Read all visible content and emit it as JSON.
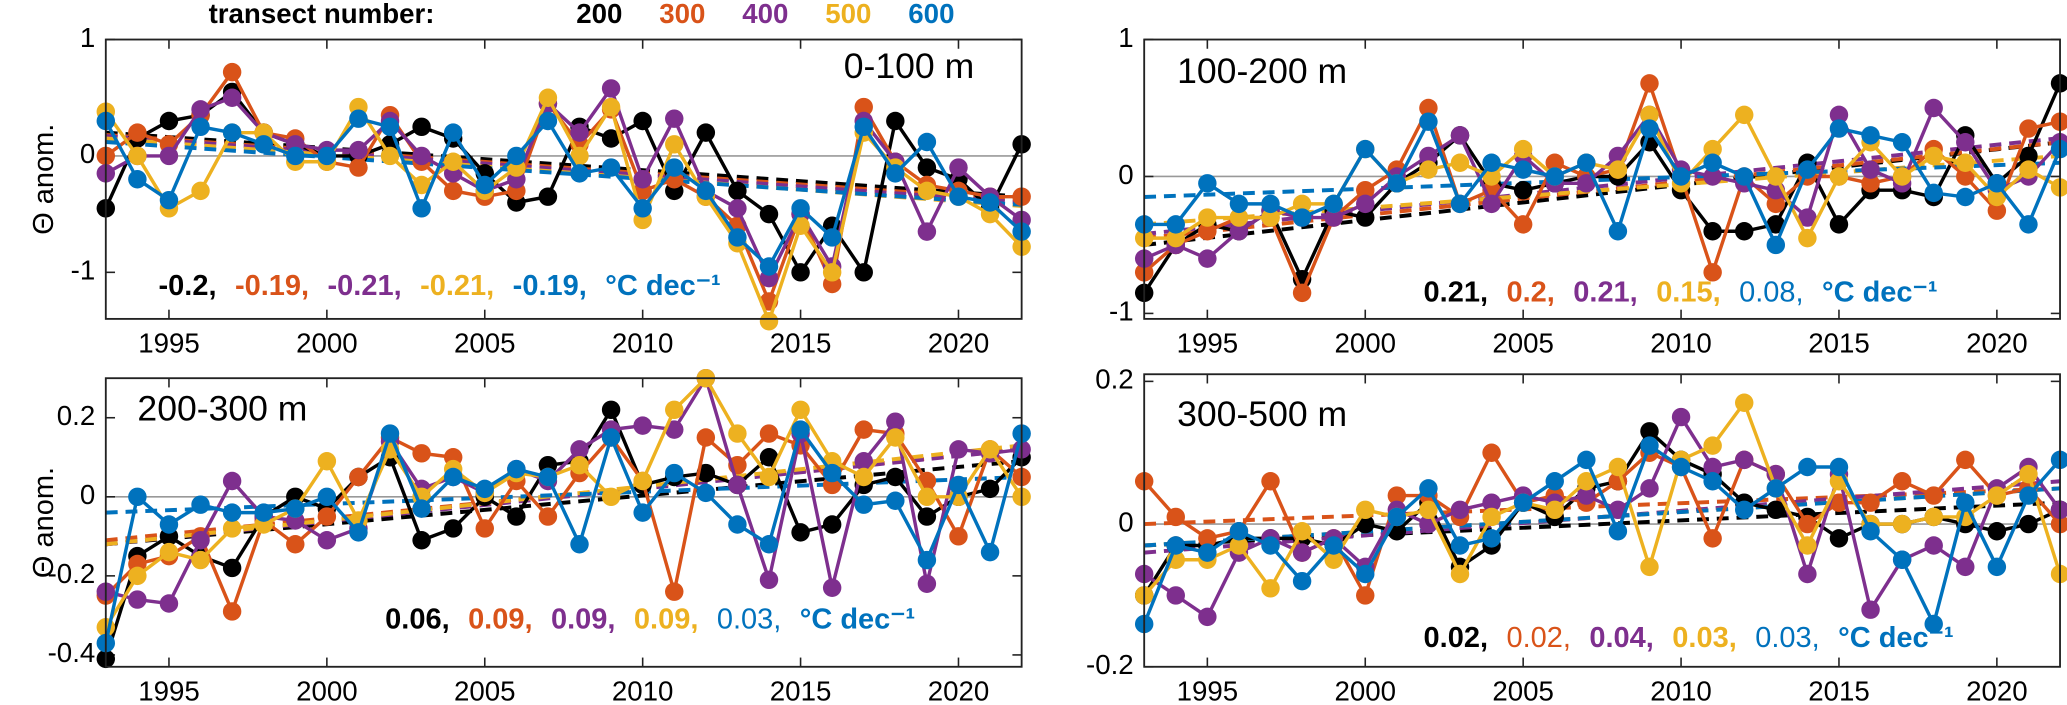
{
  "legend": {
    "title": "transect number:"
  },
  "chart_data": [
    {
      "type": "line",
      "title": "0-100 m",
      "ylabel": "Θ anom.",
      "unit_label": "°C dec⁻¹",
      "zero_line": true,
      "x": [
        1993,
        1994,
        1995,
        1996,
        1997,
        1998,
        1999,
        2000,
        2001,
        2002,
        2003,
        2004,
        2005,
        2006,
        2007,
        2008,
        2009,
        2010,
        2011,
        2012,
        2013,
        2014,
        2015,
        2016,
        2017,
        2018,
        2019,
        2020,
        2021,
        2022
      ],
      "xlim": [
        1993,
        2022
      ],
      "xticks": [
        1995,
        2000,
        2005,
        2010,
        2015,
        2020
      ],
      "ylim": [
        -1.4,
        1
      ],
      "yticks": [
        -1,
        0,
        1
      ],
      "series": [
        {
          "name": "200",
          "color": "#000000",
          "trend_label": "-0.2,",
          "trend_bold": true,
          "trend": [
            0.2,
            -0.35
          ],
          "values": [
            -0.45,
            0.15,
            0.3,
            0.35,
            0.55,
            0.2,
            0.1,
            0.0,
            0.0,
            0.1,
            0.25,
            0.15,
            -0.15,
            -0.4,
            -0.35,
            0.25,
            0.15,
            0.3,
            -0.3,
            0.2,
            -0.3,
            -0.5,
            -1.0,
            -0.6,
            -1.0,
            0.3,
            -0.1,
            -0.2,
            -0.45,
            0.1
          ]
        },
        {
          "name": "300",
          "color": "#d95319",
          "trend_label": "-0.19,",
          "trend_bold": true,
          "trend": [
            0.18,
            -0.38
          ],
          "values": [
            0.0,
            0.2,
            0.1,
            0.35,
            0.72,
            0.2,
            0.15,
            -0.05,
            -0.1,
            0.35,
            -0.05,
            -0.3,
            -0.35,
            -0.3,
            0.45,
            0.1,
            0.4,
            -0.3,
            -0.2,
            -0.35,
            -0.6,
            -1.25,
            -0.5,
            -1.1,
            0.42,
            -0.05,
            -0.25,
            -0.3,
            -0.35,
            -0.35
          ]
        },
        {
          "name": "400",
          "color": "#7e2f8e",
          "trend_label": "-0.21,",
          "trend_bold": true,
          "trend": [
            0.17,
            -0.4
          ],
          "values": [
            -0.15,
            0.0,
            0.0,
            0.4,
            0.5,
            0.2,
            0.1,
            0.05,
            0.05,
            0.3,
            0.0,
            -0.15,
            -0.3,
            -0.2,
            0.45,
            0.2,
            0.58,
            -0.2,
            0.32,
            -0.3,
            -0.45,
            -1.05,
            -0.5,
            -0.95,
            0.3,
            -0.05,
            -0.65,
            -0.1,
            -0.35,
            -0.55
          ]
        },
        {
          "name": "500",
          "color": "#edb120",
          "trend_label": "-0.21,",
          "trend_bold": true,
          "trend": [
            0.15,
            -0.43
          ],
          "values": [
            0.38,
            0.0,
            -0.45,
            -0.3,
            0.2,
            0.2,
            -0.05,
            -0.05,
            0.42,
            0.0,
            -0.25,
            -0.05,
            -0.3,
            -0.1,
            0.5,
            0.0,
            0.42,
            -0.55,
            0.1,
            -0.35,
            -0.75,
            -1.42,
            -0.6,
            -1.0,
            0.2,
            -0.1,
            -0.3,
            -0.35,
            -0.5,
            -0.78
          ]
        },
        {
          "name": "600",
          "color": "#0072bd",
          "trend_label": "-0.19,",
          "trend_bold": true,
          "trend": [
            0.12,
            -0.42
          ],
          "values": [
            0.3,
            -0.2,
            -0.38,
            0.25,
            0.2,
            0.1,
            0.0,
            0.0,
            0.32,
            0.25,
            -0.45,
            0.2,
            -0.25,
            0.0,
            0.3,
            -0.15,
            -0.1,
            -0.45,
            -0.1,
            -0.3,
            -0.7,
            -0.95,
            -0.45,
            -0.7,
            0.25,
            -0.15,
            0.12,
            -0.35,
            -0.4,
            -0.65
          ]
        }
      ]
    },
    {
      "type": "line",
      "title": "100-200 m",
      "unit_label": "°C dec⁻¹",
      "zero_line": true,
      "x": [
        1993,
        1994,
        1995,
        1996,
        1997,
        1998,
        1999,
        2000,
        2001,
        2002,
        2003,
        2004,
        2005,
        2006,
        2007,
        2008,
        2009,
        2010,
        2011,
        2012,
        2013,
        2014,
        2015,
        2016,
        2017,
        2018,
        2019,
        2020,
        2021,
        2022
      ],
      "xlim": [
        1993,
        2022
      ],
      "xticks": [
        1995,
        2000,
        2005,
        2010,
        2015,
        2020
      ],
      "ylim": [
        -1.04,
        1
      ],
      "yticks": [
        -1,
        0,
        1
      ],
      "series": [
        {
          "name": "200",
          "color": "#000000",
          "trend_label": "0.21,",
          "trend_bold": true,
          "trend": [
            -0.5,
            0.25
          ],
          "values": [
            -0.85,
            -0.5,
            -0.35,
            -0.4,
            -0.25,
            -0.75,
            -0.25,
            -0.3,
            -0.05,
            0.1,
            0.3,
            -0.05,
            -0.1,
            -0.05,
            0.0,
            0.0,
            0.25,
            -0.1,
            -0.4,
            -0.4,
            -0.35,
            0.1,
            -0.35,
            -0.1,
            -0.1,
            -0.15,
            0.3,
            -0.05,
            0.15,
            0.68
          ]
        },
        {
          "name": "300",
          "color": "#d95319",
          "trend_label": "0.2,",
          "trend_bold": true,
          "trend": [
            -0.45,
            0.25
          ],
          "values": [
            -0.7,
            -0.5,
            -0.4,
            -0.3,
            -0.3,
            -0.85,
            -0.3,
            -0.1,
            0.05,
            0.5,
            -0.2,
            -0.1,
            -0.35,
            0.1,
            0.0,
            0.05,
            0.68,
            0.0,
            -0.7,
            0.0,
            -0.2,
            0.0,
            0.0,
            -0.05,
            0.0,
            0.2,
            0.0,
            -0.25,
            0.35,
            0.4
          ]
        },
        {
          "name": "400",
          "color": "#7e2f8e",
          "trend_label": "0.21,",
          "trend_bold": true,
          "trend": [
            -0.42,
            0.28
          ],
          "values": [
            -0.6,
            -0.5,
            -0.6,
            -0.4,
            -0.25,
            -0.3,
            -0.3,
            -0.2,
            0.0,
            0.15,
            0.3,
            -0.2,
            0.15,
            -0.05,
            -0.05,
            0.15,
            0.45,
            0.05,
            0.0,
            -0.05,
            -0.1,
            -0.3,
            0.45,
            0.05,
            -0.05,
            0.5,
            0.25,
            -0.1,
            0.0,
            0.25
          ]
        },
        {
          "name": "500",
          "color": "#edb120",
          "trend_label": "0.15,",
          "trend_bold": true,
          "trend": [
            -0.35,
            0.15
          ],
          "values": [
            -0.45,
            -0.45,
            -0.3,
            -0.3,
            -0.3,
            -0.2,
            -0.2,
            0.2,
            -0.05,
            0.05,
            0.1,
            0.0,
            0.2,
            0.0,
            0.1,
            0.05,
            0.45,
            -0.05,
            0.2,
            0.45,
            0.0,
            -0.45,
            0.0,
            0.25,
            0.0,
            0.15,
            0.1,
            -0.15,
            0.05,
            -0.08
          ]
        },
        {
          "name": "600",
          "color": "#0072bd",
          "trend_label": "0.08,",
          "trend_bold": false,
          "trend": [
            -0.15,
            0.1
          ],
          "values": [
            -0.35,
            -0.35,
            -0.05,
            -0.2,
            -0.2,
            -0.3,
            -0.2,
            0.2,
            -0.05,
            0.4,
            -0.2,
            0.1,
            0.05,
            0.0,
            0.1,
            -0.4,
            0.35,
            0.0,
            0.1,
            0.0,
            -0.5,
            0.05,
            0.35,
            0.3,
            0.25,
            -0.12,
            -0.15,
            -0.05,
            -0.35,
            0.2
          ]
        }
      ]
    },
    {
      "type": "line",
      "title": "200-300 m",
      "ylabel": "Θ anom.",
      "unit_label": "°C dec⁻¹",
      "zero_line": true,
      "x": [
        1993,
        1994,
        1995,
        1996,
        1997,
        1998,
        1999,
        2000,
        2001,
        2002,
        2003,
        2004,
        2005,
        2006,
        2007,
        2008,
        2009,
        2010,
        2011,
        2012,
        2013,
        2014,
        2015,
        2016,
        2017,
        2018,
        2019,
        2020,
        2021,
        2022
      ],
      "xlim": [
        1993,
        2022
      ],
      "xticks": [
        1995,
        2000,
        2005,
        2010,
        2015,
        2020
      ],
      "ylim": [
        -0.43,
        0.3
      ],
      "yticks": [
        -0.4,
        -0.2,
        0,
        0.2
      ],
      "series": [
        {
          "name": "200",
          "color": "#000000",
          "trend_label": "0.06,",
          "trend_bold": true,
          "trend": [
            -0.12,
            0.09
          ],
          "values": [
            -0.41,
            -0.15,
            -0.1,
            -0.15,
            -0.18,
            -0.05,
            0.0,
            -0.03,
            0.05,
            0.1,
            -0.11,
            -0.08,
            0.0,
            -0.05,
            0.08,
            0.09,
            0.22,
            0.03,
            0.05,
            0.06,
            0.03,
            0.1,
            -0.09,
            -0.07,
            0.03,
            0.05,
            -0.05,
            0.0,
            0.02,
            0.1
          ]
        },
        {
          "name": "300",
          "color": "#d95319",
          "trend_label": "0.09,",
          "trend_bold": true,
          "trend": [
            -0.11,
            0.12
          ],
          "values": [
            -0.25,
            -0.17,
            -0.15,
            -0.1,
            -0.29,
            -0.06,
            -0.12,
            -0.05,
            0.05,
            0.15,
            0.11,
            0.1,
            -0.08,
            0.04,
            -0.05,
            0.06,
            0.15,
            0.04,
            -0.24,
            0.15,
            0.08,
            0.16,
            0.13,
            0.03,
            0.17,
            0.16,
            0.04,
            -0.1,
            0.12,
            0.05
          ]
        },
        {
          "name": "400",
          "color": "#7e2f8e",
          "trend_label": "0.09,",
          "trend_bold": true,
          "trend": [
            -0.12,
            0.12
          ],
          "values": [
            -0.24,
            -0.26,
            -0.27,
            -0.11,
            0.04,
            -0.05,
            -0.06,
            -0.11,
            -0.08,
            0.14,
            0.02,
            0.05,
            0.01,
            0.07,
            0.04,
            0.12,
            0.17,
            0.18,
            0.17,
            0.3,
            0.03,
            -0.21,
            0.16,
            -0.23,
            0.09,
            0.19,
            -0.22,
            0.12,
            0.11,
            0.12
          ]
        },
        {
          "name": "500",
          "color": "#edb120",
          "trend_label": "0.09,",
          "trend_bold": true,
          "trend": [
            -0.12,
            0.13
          ],
          "values": [
            -0.33,
            -0.2,
            -0.14,
            -0.16,
            -0.08,
            -0.07,
            -0.03,
            0.09,
            -0.06,
            0.12,
            0.0,
            0.07,
            0.01,
            0.06,
            0.05,
            0.08,
            0.0,
            0.04,
            0.22,
            0.3,
            0.16,
            0.05,
            0.22,
            0.09,
            0.05,
            0.15,
            0.0,
            0.0,
            0.12,
            0.0
          ]
        },
        {
          "name": "600",
          "color": "#0072bd",
          "trend_label": "0.03,",
          "trend_bold": false,
          "trend": [
            -0.04,
            0.05
          ],
          "values": [
            -0.37,
            0.0,
            -0.07,
            -0.02,
            -0.04,
            -0.04,
            -0.03,
            0.0,
            -0.09,
            0.16,
            -0.03,
            0.05,
            0.02,
            0.07,
            0.05,
            -0.12,
            0.15,
            -0.04,
            0.06,
            0.01,
            -0.07,
            -0.12,
            0.17,
            0.06,
            -0.02,
            -0.01,
            -0.16,
            0.03,
            -0.14,
            0.16
          ]
        }
      ]
    },
    {
      "type": "line",
      "title": "300-500 m",
      "unit_label": "°C dec⁻¹",
      "zero_line": true,
      "x": [
        1993,
        1994,
        1995,
        1996,
        1997,
        1998,
        1999,
        2000,
        2001,
        2002,
        2003,
        2004,
        2005,
        2006,
        2007,
        2008,
        2009,
        2010,
        2011,
        2012,
        2013,
        2014,
        2015,
        2016,
        2017,
        2018,
        2019,
        2020,
        2021,
        2022
      ],
      "xlim": [
        1993,
        2022
      ],
      "xticks": [
        1995,
        2000,
        2005,
        2010,
        2015,
        2020
      ],
      "ylim": [
        -0.2,
        0.21
      ],
      "yticks": [
        -0.2,
        0,
        0.2
      ],
      "series": [
        {
          "name": "200",
          "color": "#000000",
          "trend_label": "0.02,",
          "trend_bold": true,
          "trend": [
            -0.03,
            0.03
          ],
          "values": [
            -0.1,
            -0.03,
            -0.03,
            -0.02,
            -0.02,
            -0.02,
            -0.03,
            0.0,
            -0.01,
            0.03,
            -0.06,
            -0.03,
            0.03,
            0.01,
            0.05,
            0.06,
            0.13,
            0.09,
            0.07,
            0.03,
            0.02,
            0.01,
            -0.02,
            0.0,
            0.0,
            0.01,
            0.0,
            -0.01,
            0.0,
            0.02
          ]
        },
        {
          "name": "300",
          "color": "#d95319",
          "trend_label": "0.02,",
          "trend_bold": false,
          "trend": [
            0.0,
            0.05
          ],
          "values": [
            0.06,
            0.01,
            -0.02,
            -0.01,
            0.06,
            -0.04,
            -0.02,
            -0.1,
            0.04,
            0.04,
            0.01,
            0.1,
            0.03,
            0.04,
            0.03,
            0.06,
            0.1,
            0.08,
            -0.02,
            0.09,
            0.07,
            0.0,
            0.03,
            0.03,
            0.06,
            0.04,
            0.09,
            0.04,
            0.05,
            0.0
          ]
        },
        {
          "name": "400",
          "color": "#7e2f8e",
          "trend_label": "0.04,",
          "trend_bold": true,
          "trend": [
            -0.04,
            0.06
          ],
          "values": [
            -0.07,
            -0.1,
            -0.13,
            -0.04,
            -0.02,
            -0.04,
            -0.02,
            -0.06,
            0.02,
            0.0,
            0.02,
            0.03,
            0.04,
            0.03,
            0.04,
            0.02,
            0.05,
            0.15,
            0.08,
            0.09,
            0.07,
            -0.07,
            0.07,
            -0.12,
            -0.05,
            -0.03,
            -0.06,
            0.05,
            0.08,
            0.02
          ]
        },
        {
          "name": "500",
          "color": "#edb120",
          "trend_label": "0.03,",
          "trend_bold": true,
          "trend": [
            -0.03,
            0.05
          ],
          "values": [
            -0.1,
            -0.05,
            -0.05,
            -0.03,
            -0.09,
            -0.01,
            -0.05,
            0.02,
            0.01,
            0.02,
            -0.07,
            0.01,
            0.03,
            0.02,
            0.06,
            0.08,
            -0.06,
            0.09,
            0.11,
            0.17,
            0.05,
            -0.03,
            0.06,
            0.0,
            0.0,
            0.01,
            0.01,
            0.04,
            0.07,
            -0.07
          ]
        },
        {
          "name": "600",
          "color": "#0072bd",
          "trend_label": "0.03,",
          "trend_bold": false,
          "trend": [
            -0.03,
            0.05
          ],
          "values": [
            -0.14,
            -0.03,
            -0.04,
            -0.01,
            -0.03,
            -0.08,
            -0.03,
            -0.07,
            0.01,
            0.05,
            -0.03,
            -0.02,
            0.03,
            0.06,
            0.09,
            -0.01,
            0.11,
            0.08,
            0.06,
            0.02,
            0.05,
            0.08,
            0.08,
            -0.01,
            -0.05,
            -0.14,
            0.03,
            -0.06,
            0.04,
            0.09
          ]
        }
      ]
    }
  ]
}
